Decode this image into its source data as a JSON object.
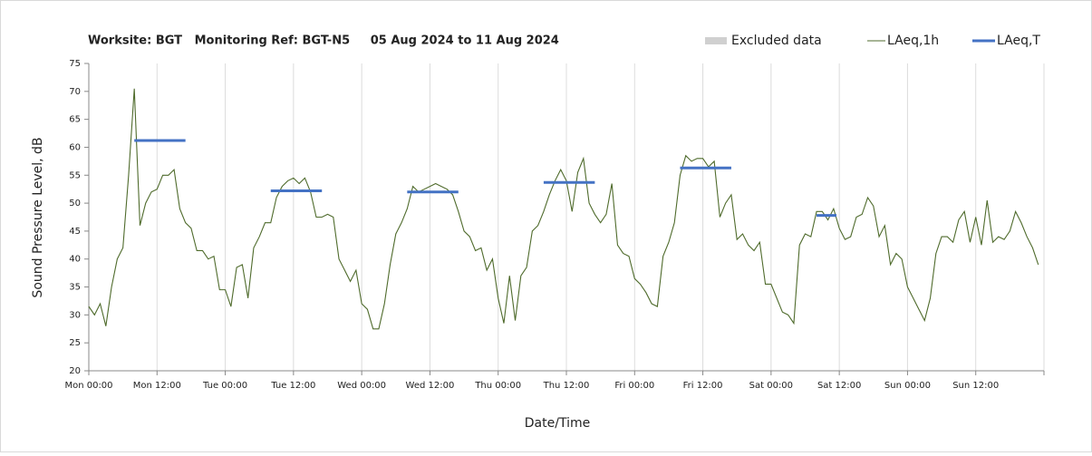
{
  "chart_data": {
    "type": "line",
    "title": "Worksite: BGT   Monitoring Ref: BGT-N5     05 Aug 2024 to 11 Aug 2024",
    "ylabel": "Sound Pressure Level, dB",
    "xlabel": "Date/Time",
    "xlim": [
      0,
      168
    ],
    "xticks": [
      {
        "value": 0,
        "label": "Mon 00:00"
      },
      {
        "value": 12,
        "label": "Mon 12:00"
      },
      {
        "value": 24,
        "label": "Tue 00:00"
      },
      {
        "value": 36,
        "label": "Tue 12:00"
      },
      {
        "value": 48,
        "label": "Wed 00:00"
      },
      {
        "value": 60,
        "label": "Wed 12:00"
      },
      {
        "value": 72,
        "label": "Thu 00:00"
      },
      {
        "value": 84,
        "label": "Thu 12:00"
      },
      {
        "value": 96,
        "label": "Fri 00:00"
      },
      {
        "value": 108,
        "label": "Fri 12:00"
      },
      {
        "value": 120,
        "label": "Sat 00:00"
      },
      {
        "value": 132,
        "label": "Sat 12:00"
      },
      {
        "value": 144,
        "label": "Sun 00:00"
      },
      {
        "value": 156,
        "label": "Sun 12:00"
      },
      {
        "value": 168,
        "label": ""
      }
    ],
    "ylim": [
      20,
      75
    ],
    "yticks": [
      20,
      25,
      30,
      35,
      40,
      45,
      50,
      55,
      60,
      65,
      70,
      75
    ],
    "grid": "x",
    "legend": "top-right",
    "excluded": {
      "name": "Excluded data",
      "color": "#d0d0d0"
    },
    "series": [
      {
        "name": "LAeq,1h",
        "color": "#4f6b2c",
        "x": [
          0,
          1,
          2,
          3,
          4,
          5,
          6,
          7,
          8,
          9,
          10,
          11,
          12,
          13,
          14,
          15,
          16,
          17,
          18,
          19,
          20,
          21,
          22,
          23,
          24,
          25,
          26,
          27,
          28,
          29,
          30,
          31,
          32,
          33,
          34,
          35,
          36,
          37,
          38,
          39,
          40,
          41,
          42,
          43,
          44,
          45,
          46,
          47,
          48,
          49,
          50,
          51,
          52,
          53,
          54,
          55,
          56,
          57,
          58,
          59,
          60,
          61,
          62,
          63,
          64,
          65,
          66,
          67,
          68,
          69,
          70,
          71,
          72,
          73,
          74,
          75,
          76,
          77,
          78,
          79,
          80,
          81,
          82,
          83,
          84,
          85,
          86,
          87,
          88,
          89,
          90,
          91,
          92,
          93,
          94,
          95,
          96,
          97,
          98,
          99,
          100,
          101,
          102,
          103,
          104,
          105,
          106,
          107,
          108,
          109,
          110,
          111,
          112,
          113,
          114,
          115,
          116,
          117,
          118,
          119,
          120,
          121,
          122,
          123,
          124,
          125,
          126,
          127,
          128,
          129,
          130,
          131,
          132,
          133,
          134,
          135,
          136,
          137,
          138,
          139,
          140,
          141,
          142,
          143,
          144,
          145,
          146,
          147,
          148,
          149,
          150,
          151,
          152,
          153,
          154,
          155,
          156,
          157,
          158,
          159,
          160,
          161,
          162,
          163,
          164,
          165,
          166,
          167
        ],
        "values": [
          31.5,
          30,
          32,
          28,
          35,
          40,
          42,
          55,
          70.5,
          46,
          50,
          52,
          52.5,
          55,
          55,
          56,
          49,
          46.5,
          45.5,
          41.5,
          41.5,
          40,
          40.5,
          34.5,
          34.5,
          31.5,
          38.5,
          39,
          33,
          42,
          44,
          46.5,
          46.5,
          51,
          53,
          54,
          54.5,
          53.5,
          54.5,
          52,
          47.5,
          47.5,
          48,
          47.5,
          40,
          38,
          36,
          38,
          32,
          31,
          27.5,
          27.5,
          32,
          39,
          44.5,
          46.5,
          49,
          53,
          52,
          52.5,
          53,
          53.5,
          53,
          52.5,
          51.5,
          48.5,
          45,
          44,
          41.5,
          42,
          38,
          40,
          33,
          28.5,
          37,
          29,
          37,
          38.5,
          45,
          46,
          48.5,
          51.5,
          54,
          56,
          54,
          48.5,
          55.5,
          58,
          50,
          48,
          46.5,
          48,
          53.5,
          42.5,
          41,
          40.5,
          36.5,
          35.5,
          34,
          32,
          31.5,
          40.5,
          43,
          46.5,
          55,
          58.5,
          57.5,
          58,
          58,
          56.5,
          57.5,
          47.5,
          50,
          51.5,
          43.5,
          44.5,
          42.5,
          41.5,
          43,
          35.5,
          35.5,
          33,
          30.5,
          30,
          28.5,
          42.5,
          44.5,
          44,
          48.5,
          48.5,
          47,
          49,
          45.5,
          43.5,
          44,
          47.5,
          48,
          51,
          49.5,
          44,
          46,
          39,
          41,
          40,
          35,
          33,
          31,
          29,
          33,
          41,
          44,
          44,
          43,
          47,
          48.5,
          43,
          47.5,
          42.5,
          50.5,
          43,
          44,
          43.5,
          45,
          48.5,
          46.5,
          44,
          42,
          39
        ]
      },
      {
        "name": "LAeq,T",
        "color": "#4472c4",
        "segments": [
          {
            "x": [
              8,
              17
            ],
            "value": 61.2
          },
          {
            "x": [
              32,
              41
            ],
            "value": 52.2
          },
          {
            "x": [
              56,
              65
            ],
            "value": 52
          },
          {
            "x": [
              80,
              89
            ],
            "value": 53.7
          },
          {
            "x": [
              104,
              113
            ],
            "value": 56.3
          },
          {
            "x": [
              128,
              131.5
            ],
            "value": 47.8
          }
        ]
      }
    ]
  }
}
